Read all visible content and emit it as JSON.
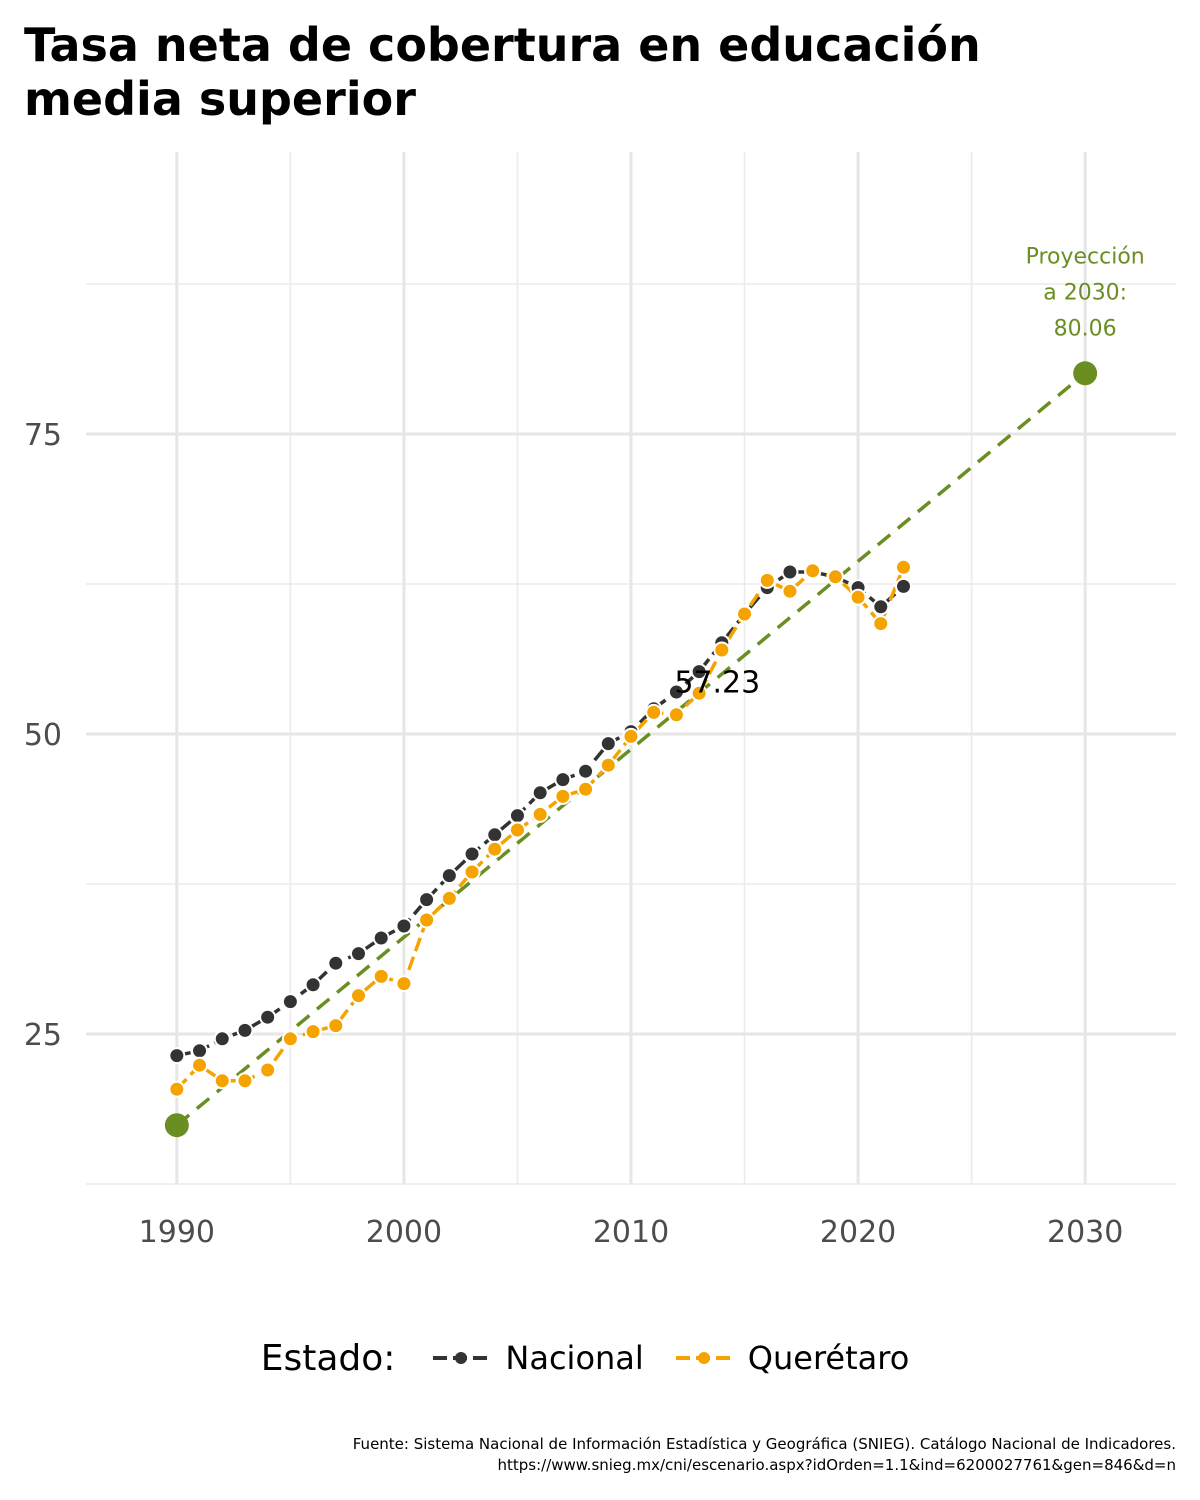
{
  "chart_data": {
    "type": "line",
    "title": "Tasa neta de cobertura en educación media superior",
    "xlabel": "",
    "ylabel": "",
    "xlim": [
      1986,
      2034
    ],
    "ylim": [
      12.5,
      98.5
    ],
    "x_ticks": [
      1990,
      2000,
      2010,
      2020,
      2030
    ],
    "y_ticks": [
      25,
      50,
      75
    ],
    "grid": true,
    "legend": {
      "title": "Estado:",
      "placement": "bottom"
    },
    "series": [
      {
        "name": "Nacional",
        "color": "#333333",
        "line_style": "dashed",
        "x": [
          1990,
          1991,
          1992,
          1993,
          1994,
          1995,
          1996,
          1997,
          1998,
          1999,
          2000,
          2001,
          2002,
          2003,
          2004,
          2005,
          2006,
          2007,
          2008,
          2009,
          2010,
          2011,
          2012,
          2013,
          2014,
          2015,
          2016,
          2017,
          2018,
          2019,
          2020,
          2021,
          2022
        ],
        "y": [
          23.2,
          23.6,
          24.6,
          25.3,
          26.4,
          27.7,
          29.1,
          30.9,
          31.7,
          33.0,
          34.0,
          36.2,
          38.2,
          40.0,
          41.6,
          43.2,
          45.1,
          46.2,
          46.9,
          49.2,
          50.2,
          52.1,
          53.5,
          55.2,
          57.6,
          60.0,
          62.2,
          63.5,
          63.5,
          63.1,
          62.2,
          60.6,
          62.3
        ]
      },
      {
        "name": "Querétaro",
        "color": "#F5A300",
        "line_style": "dashed",
        "x": [
          1990,
          1991,
          1992,
          1993,
          1994,
          1995,
          1996,
          1997,
          1998,
          1999,
          2000,
          2001,
          2002,
          2003,
          2004,
          2005,
          2006,
          2007,
          2008,
          2009,
          2010,
          2011,
          2012,
          2013,
          2014,
          2015,
          2016,
          2017,
          2018,
          2019,
          2020,
          2021,
          2022
        ],
        "y": [
          20.4,
          22.4,
          21.1,
          21.1,
          22.0,
          24.6,
          25.2,
          25.7,
          28.2,
          29.8,
          29.2,
          34.5,
          36.3,
          38.5,
          40.4,
          42.0,
          43.3,
          44.8,
          45.4,
          47.4,
          49.8,
          51.8,
          51.6,
          53.4,
          57.0,
          60.0,
          62.8,
          61.9,
          63.6,
          63.1,
          61.4,
          59.2,
          63.9
        ]
      }
    ],
    "projection": {
      "color": "#6B8E23",
      "x": [
        1990,
        2030
      ],
      "y": [
        17.4,
        80.06
      ],
      "label_lines": [
        "Proyección",
        "a 2030:",
        "80.06"
      ]
    },
    "annotations": [
      {
        "text": "57.23",
        "x": 2013.8,
        "y": 54.3
      }
    ]
  },
  "caption": {
    "line1": "Fuente: Sistema Nacional de Información Estadística y Geográfica (SNIEG). Catálogo Nacional de Indicadores.",
    "line2": "https://www.snieg.mx/cni/escenario.aspx?idOrden=1.1&ind=6200027761&gen=846&d=n"
  }
}
